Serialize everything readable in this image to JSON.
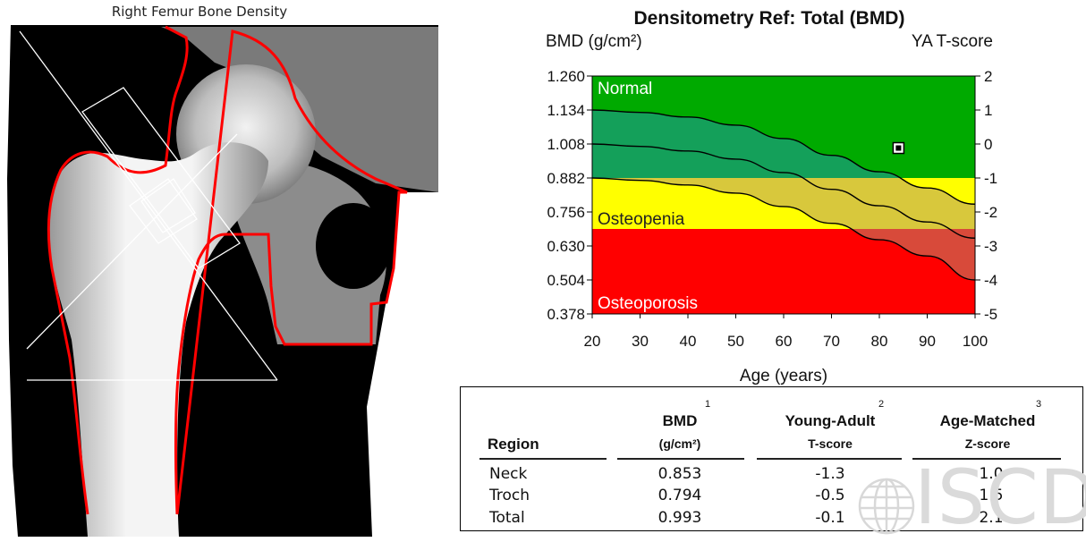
{
  "xray": {
    "title": "Right Femur Bone Density"
  },
  "chart_data": {
    "type": "area",
    "title": "Densitometry Ref: Total (BMD)",
    "ylabel": "BMD (g/cm²)",
    "y2label": "YA T-score",
    "xlabel": "Age (years)",
    "xlim": [
      20,
      100
    ],
    "ylim": [
      0.378,
      1.26
    ],
    "x_ticks": [
      "20",
      "30",
      "40",
      "50",
      "60",
      "70",
      "80",
      "90",
      "100"
    ],
    "y_ticks": [
      "1.260",
      "1.134",
      "1.008",
      "0.882",
      "0.756",
      "0.630",
      "0.504",
      "0.378"
    ],
    "y2_ticks": [
      "2",
      "1",
      "0",
      "-1",
      "-2",
      "-3",
      "-4",
      "-5"
    ],
    "zones": [
      {
        "name": "Normal",
        "from": 0.882,
        "to": 1.26,
        "color": "#00aa00"
      },
      {
        "name": "Osteopenia",
        "from": 0.693,
        "to": 0.882,
        "color": "#ffff00"
      },
      {
        "name": "Osteoporosis",
        "from": 0.378,
        "to": 0.693,
        "color": "#ff0000"
      }
    ],
    "reference_curves": {
      "ages": [
        20,
        30,
        40,
        50,
        60,
        70,
        80,
        90,
        100
      ],
      "upper": [
        1.134,
        1.125,
        1.108,
        1.078,
        1.028,
        0.966,
        0.905,
        0.845,
        0.785
      ],
      "mean": [
        1.008,
        0.999,
        0.982,
        0.952,
        0.902,
        0.84,
        0.779,
        0.719,
        0.659
      ],
      "lower": [
        0.882,
        0.873,
        0.856,
        0.826,
        0.776,
        0.714,
        0.653,
        0.593,
        0.504
      ]
    },
    "patient_point": {
      "age": 84,
      "bmd": 0.993
    }
  },
  "table": {
    "headers": {
      "region": "Region",
      "bmd": "BMD",
      "bmd_unit": "(g/cm²)",
      "bmd_sup": "1",
      "ya": "Young-Adult",
      "ya_sub": "T-score",
      "ya_sup": "2",
      "am": "Age-Matched",
      "am_sub": "Z-score",
      "am_sup": "3"
    },
    "rows": [
      {
        "region": "Neck",
        "bmd": "0.853",
        "t": "-1.3",
        "z": "1.0"
      },
      {
        "region": "Troch",
        "bmd": "0.794",
        "t": "-0.5",
        "z": "1.5"
      },
      {
        "region": "Total",
        "bmd": "0.993",
        "t": "-0.1",
        "z": "2.1"
      }
    ]
  },
  "logo": {
    "text": "ISCD"
  },
  "colors": {
    "bone_outline": "#ff0000",
    "normal": "#00aa00",
    "normal_band": "#14a05a",
    "osteopenia": "#ffff00",
    "osteopenia_band": "#d8c83c",
    "osteoporosis": "#ff0000",
    "osteoporosis_band": "#d84a3a"
  }
}
